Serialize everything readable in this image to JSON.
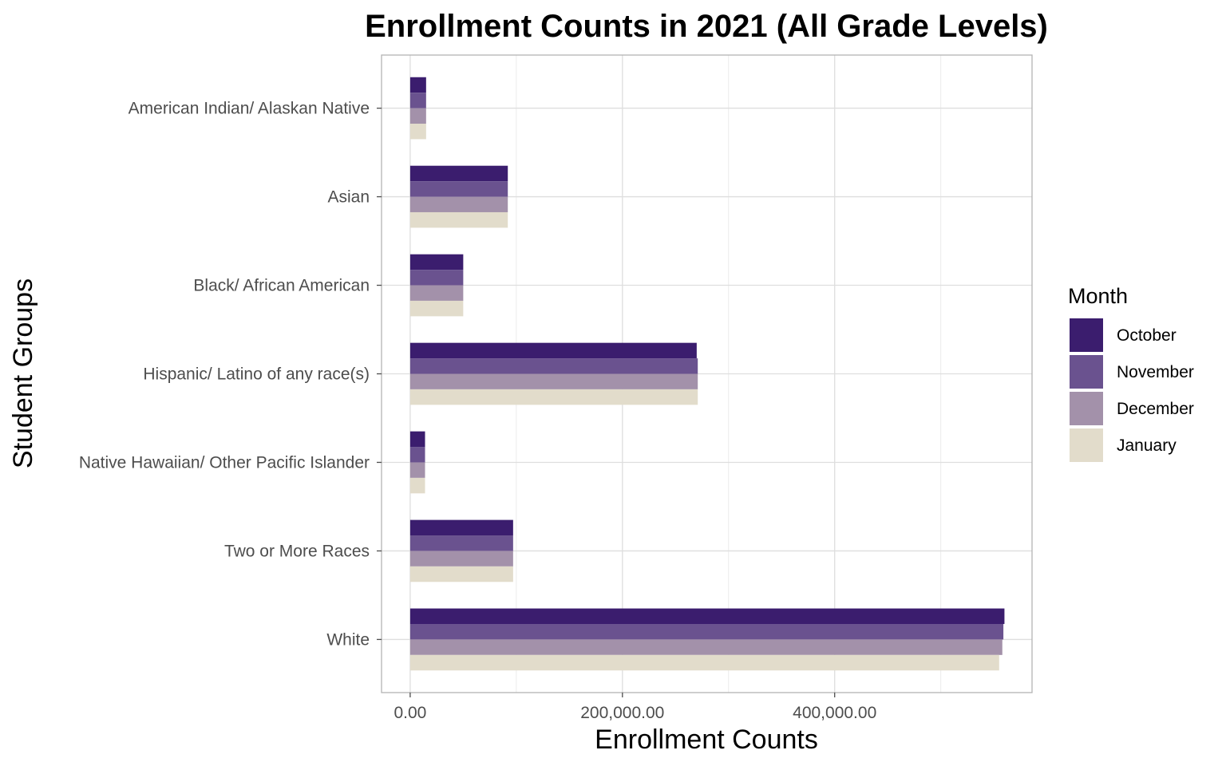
{
  "chart_data": {
    "type": "bar",
    "orientation": "horizontal",
    "title": "Enrollment Counts in 2021 (All Grade Levels)",
    "xlabel": "Enrollment Counts",
    "ylabel": "Student Groups",
    "xlim": [
      -27000,
      586000
    ],
    "x_ticks": [
      0,
      200000,
      400000
    ],
    "x_tick_labels": [
      "0.00",
      "200,000.00",
      "400,000.00"
    ],
    "grid": true,
    "legend_position": "right",
    "legend_title": "Month",
    "categories": [
      "White",
      "Two or More Races",
      "Native Hawaiian/ Other Pacific Islander",
      "Hispanic/ Latino of any race(s)",
      "Black/ African American",
      "Asian",
      "American Indian/ Alaskan Native"
    ],
    "series": [
      {
        "name": "October",
        "color": "#3b1d6e",
        "values": [
          560000,
          97000,
          14000,
          270000,
          50000,
          92000,
          15000
        ]
      },
      {
        "name": "November",
        "color": "#6a528f",
        "values": [
          559000,
          97000,
          14000,
          271000,
          50000,
          92000,
          15000
        ]
      },
      {
        "name": "December",
        "color": "#a391aa",
        "values": [
          558000,
          97000,
          14000,
          271000,
          50000,
          92000,
          15000
        ]
      },
      {
        "name": "January",
        "color": "#e2dccb",
        "values": [
          555000,
          97000,
          14000,
          271000,
          50000,
          92000,
          15000
        ]
      }
    ]
  }
}
